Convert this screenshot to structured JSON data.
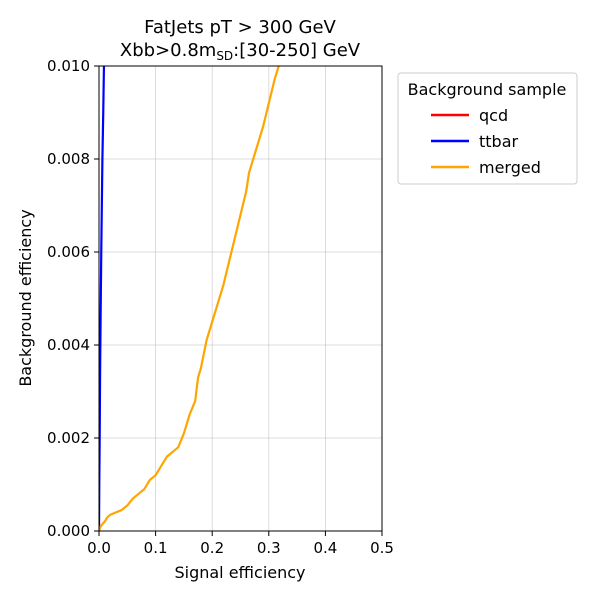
{
  "chart_data": {
    "type": "line",
    "title_line1": "FatJets pT > 300 GeV",
    "title_line2_main": "Xbb>0.8m",
    "title_line2_sub": "SD",
    "title_line2_rest": ":[30-250] GeV",
    "xlabel": "Signal efficiency",
    "ylabel": "Background efficiency",
    "xlim": [
      0.0,
      0.5
    ],
    "ylim": [
      0.0,
      0.01
    ],
    "xticks": [
      "0.0",
      "0.1",
      "0.2",
      "0.3",
      "0.4",
      "0.5"
    ],
    "yticks": [
      "0.000",
      "0.002",
      "0.004",
      "0.006",
      "0.008",
      "0.010"
    ],
    "grid": true,
    "legend": {
      "title": "Background sample",
      "placement": "outside upper right"
    },
    "series": [
      {
        "name": "qcd",
        "color": "#ff0000",
        "x": [],
        "y": []
      },
      {
        "name": "ttbar",
        "color": "#0000ff",
        "x": [
          0.0,
          0.0005,
          0.0012,
          0.002,
          0.003,
          0.004,
          0.005,
          0.006,
          0.0075,
          0.009
        ],
        "y": [
          0.0,
          0.001,
          0.002,
          0.0035,
          0.0048,
          0.006,
          0.007,
          0.008,
          0.009,
          0.0102
        ]
      },
      {
        "name": "merged",
        "color": "#ffa500",
        "x": [
          0.0,
          0.003,
          0.006,
          0.01,
          0.015,
          0.02,
          0.03,
          0.04,
          0.05,
          0.06,
          0.07,
          0.08,
          0.09,
          0.1,
          0.11,
          0.12,
          0.13,
          0.14,
          0.15,
          0.16,
          0.17,
          0.175,
          0.18,
          0.19,
          0.2,
          0.21,
          0.22,
          0.23,
          0.24,
          0.25,
          0.26,
          0.265,
          0.27,
          0.28,
          0.29,
          0.3,
          0.31,
          0.32
        ],
        "y": [
          0.0,
          0.0001,
          0.00015,
          0.0002,
          0.0003,
          0.00035,
          0.0004,
          0.00045,
          0.00055,
          0.0007,
          0.0008,
          0.0009,
          0.0011,
          0.0012,
          0.0014,
          0.0016,
          0.0017,
          0.0018,
          0.0021,
          0.0025,
          0.0028,
          0.0033,
          0.0035,
          0.0041,
          0.0045,
          0.0049,
          0.0053,
          0.0058,
          0.0063,
          0.0068,
          0.0073,
          0.0077,
          0.0079,
          0.0083,
          0.0087,
          0.0092,
          0.0097,
          0.0101
        ]
      }
    ]
  }
}
